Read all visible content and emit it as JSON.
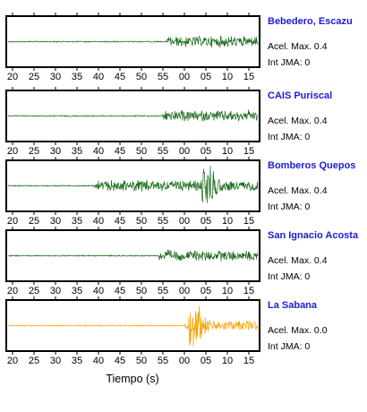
{
  "chart_data": {
    "type": "line",
    "xlabel": "Tiempo (s)",
    "x_tick_labels": [
      "20",
      "25",
      "30",
      "35",
      "40",
      "45",
      "50",
      "55",
      "00",
      "05",
      "10",
      "15"
    ],
    "grid": false,
    "legend": "none",
    "panels": [
      {
        "station": "Bebedero, Escazu",
        "peak_label": "Acel. Max. 0.4",
        "intensity_label": "Int JMA: 0",
        "color": "#1a6b1a",
        "signal_onset_tick": 7.2,
        "strong_motion_tick": 13.5
      },
      {
        "station": "CAIS Puriscal",
        "peak_label": "Acel. Max. 0.4",
        "intensity_label": "Int JMA: 0",
        "color": "#1a6b1a",
        "signal_onset_tick": 7.0,
        "strong_motion_tick": 13.8
      },
      {
        "station": "Bomberos Quepos",
        "peak_label": "Acel. Max. 0.4",
        "intensity_label": "Int JMA: 0",
        "color": "#1a6b1a",
        "signal_onset_tick": 3.8,
        "strong_motion_tick": 8.8
      },
      {
        "station": "San Ignacio Acosta",
        "peak_label": "Acel. Max. 0.4",
        "intensity_label": "Int JMA: 0",
        "color": "#1a6b1a",
        "signal_onset_tick": 6.8,
        "strong_motion_tick": 12.6
      },
      {
        "station": "La Sabana",
        "peak_label": "Acel. Max. 0.0",
        "intensity_label": "Int JMA: 0",
        "color": "#f5a300",
        "signal_onset_tick": 8.0,
        "strong_motion_tick": 8.2
      }
    ]
  }
}
